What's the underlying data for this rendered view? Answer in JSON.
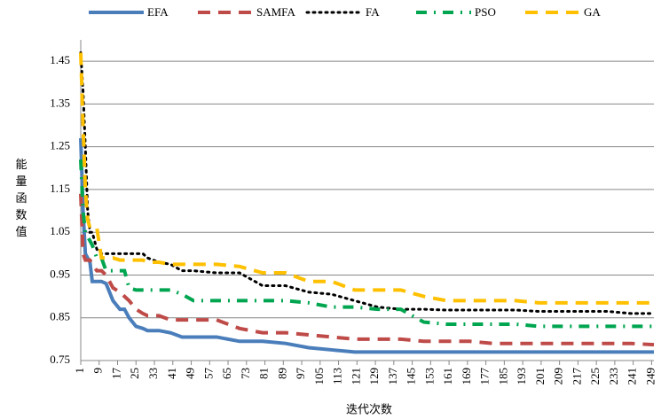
{
  "chart_data": {
    "type": "line",
    "ylabel": "能量函数值",
    "xlabel": "迭代次数",
    "x": [
      1,
      2,
      3,
      4,
      5,
      6,
      8,
      10,
      12,
      15,
      18,
      20,
      22,
      25,
      28,
      30,
      35,
      40,
      45,
      50,
      60,
      70,
      80,
      90,
      100,
      110,
      120,
      130,
      140,
      150,
      160,
      170,
      180,
      190,
      200,
      210,
      220,
      230,
      240,
      250
    ],
    "series": [
      {
        "name": "EFA",
        "color": "#4a7ebb",
        "style": "solid",
        "values": [
          1.27,
          1.1,
          1.0,
          0.99,
          0.98,
          0.935,
          0.935,
          0.935,
          0.93,
          0.89,
          0.87,
          0.87,
          0.85,
          0.83,
          0.825,
          0.82,
          0.82,
          0.815,
          0.805,
          0.805,
          0.805,
          0.795,
          0.795,
          0.79,
          0.78,
          0.775,
          0.77,
          0.77,
          0.77,
          0.77,
          0.77,
          0.77,
          0.77,
          0.77,
          0.77,
          0.77,
          0.77,
          0.77,
          0.77,
          0.77
        ]
      },
      {
        "name": "SAMFA",
        "color": "#be4b48",
        "style": "dashed",
        "values": [
          1.14,
          1.0,
          0.985,
          0.985,
          0.985,
          0.975,
          0.96,
          0.96,
          0.95,
          0.92,
          0.91,
          0.9,
          0.89,
          0.87,
          0.86,
          0.855,
          0.855,
          0.845,
          0.845,
          0.845,
          0.845,
          0.825,
          0.815,
          0.815,
          0.81,
          0.805,
          0.8,
          0.8,
          0.8,
          0.795,
          0.795,
          0.795,
          0.79,
          0.79,
          0.79,
          0.79,
          0.79,
          0.79,
          0.79,
          0.787
        ]
      },
      {
        "name": "FA",
        "color": "#000000",
        "style": "dotted",
        "values": [
          1.47,
          1.38,
          1.25,
          1.1,
          1.05,
          1.05,
          1.01,
          1.0,
          1.0,
          1.0,
          1.0,
          1.0,
          1.0,
          1.0,
          1.0,
          0.99,
          0.98,
          0.975,
          0.96,
          0.96,
          0.955,
          0.955,
          0.925,
          0.925,
          0.91,
          0.905,
          0.89,
          0.875,
          0.87,
          0.87,
          0.868,
          0.868,
          0.868,
          0.868,
          0.865,
          0.865,
          0.865,
          0.865,
          0.86,
          0.86
        ]
      },
      {
        "name": "PSO",
        "color": "#00a550",
        "style": "dashdot",
        "values": [
          1.22,
          1.1,
          1.05,
          1.04,
          1.03,
          1.02,
          0.99,
          0.99,
          0.96,
          0.96,
          0.96,
          0.96,
          0.92,
          0.915,
          0.915,
          0.915,
          0.915,
          0.915,
          0.905,
          0.89,
          0.89,
          0.89,
          0.89,
          0.89,
          0.885,
          0.875,
          0.875,
          0.87,
          0.87,
          0.84,
          0.835,
          0.835,
          0.835,
          0.835,
          0.83,
          0.83,
          0.83,
          0.83,
          0.83,
          0.83
        ]
      },
      {
        "name": "GA",
        "color": "#ffc000",
        "style": "dashed",
        "values": [
          1.47,
          1.3,
          1.15,
          1.08,
          1.06,
          1.06,
          1.06,
          0.99,
          0.99,
          0.99,
          0.985,
          0.985,
          0.985,
          0.985,
          0.985,
          0.98,
          0.98,
          0.975,
          0.975,
          0.975,
          0.975,
          0.97,
          0.955,
          0.955,
          0.935,
          0.935,
          0.915,
          0.915,
          0.915,
          0.9,
          0.89,
          0.89,
          0.89,
          0.89,
          0.885,
          0.885,
          0.885,
          0.885,
          0.885,
          0.885
        ]
      }
    ],
    "xlim": [
      1,
      250
    ],
    "xticks": [
      1,
      9,
      17,
      25,
      33,
      41,
      49,
      57,
      65,
      73,
      81,
      89,
      97,
      105,
      113,
      121,
      129,
      137,
      145,
      153,
      161,
      169,
      177,
      185,
      193,
      201,
      209,
      217,
      225,
      233,
      241,
      249
    ],
    "ylim": [
      0.75,
      1.5
    ],
    "yticks": [
      0.75,
      0.85,
      0.95,
      1.05,
      1.15,
      1.25,
      1.35,
      1.45
    ],
    "grid": true,
    "legend": "top"
  }
}
